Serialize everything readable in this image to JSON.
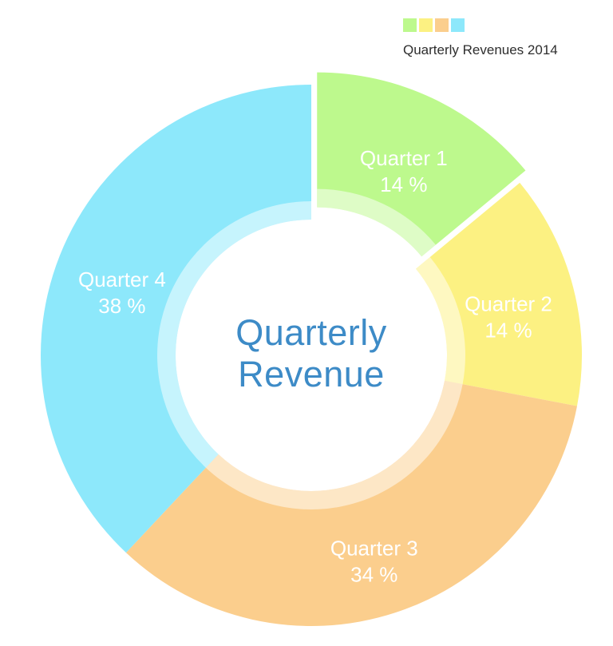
{
  "chart_data": {
    "type": "pie",
    "subtype": "donut",
    "title": "Quarterly Revenue",
    "legend_label": "Quarterly Revenues 2014",
    "legend_position": "top-right",
    "categories": [
      "Quarter 1",
      "Quarter 2",
      "Quarter 3",
      "Quarter 4"
    ],
    "values": [
      14,
      14,
      34,
      38
    ],
    "unit": "%",
    "direction": "clockwise",
    "start_angle_deg": 0,
    "donut_hole": true,
    "inner_highlight_ring": true,
    "title_color": "#3d8bc7",
    "label_color": "#ffffff",
    "legend_text_color": "#2e2e2e",
    "slices": [
      {
        "label": "Quarter 1",
        "value": 14,
        "display": "14 %",
        "color": "#bdf98d",
        "exploded": true
      },
      {
        "label": "Quarter 2",
        "value": 14,
        "display": "14 %",
        "color": "#fcf182",
        "exploded": false
      },
      {
        "label": "Quarter 3",
        "value": 34,
        "display": "34 %",
        "color": "#fbce8d",
        "exploded": false
      },
      {
        "label": "Quarter 4",
        "value": 38,
        "display": "38 %",
        "color": "#8de8fb",
        "exploded": false
      }
    ]
  }
}
